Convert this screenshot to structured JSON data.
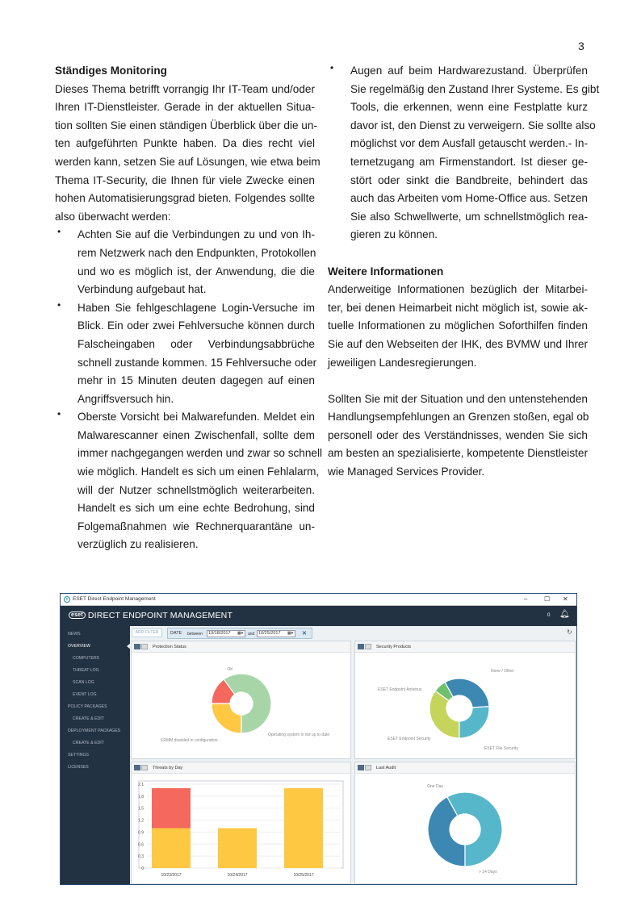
{
  "page_number": "3",
  "left_column": [
    {
      "type": "heading",
      "lines": [
        "Ständiges Monitoring"
      ]
    },
    {
      "type": "para",
      "lines": [
        "Dieses Thema betrifft vorrangig Ihr IT-Team und/oder",
        "Ihren IT-Dienstleister. Gerade in der aktuellen Situa-",
        "tion sollten Sie einen ständigen Überblick über die un-",
        "ten aufgeführten Punkte haben. Da dies recht viel",
        "werden kann, setzen Sie auf Lösungen, wie etwa beim",
        "Thema IT-Security, die Ihnen für viele Zwecke einen",
        "hohen Automatisierungsgrad bieten. Folgendes sollte",
        "also überwacht werden:"
      ]
    },
    {
      "type": "bullet",
      "lines": [
        "Achten Sie auf die Verbindungen zu und von Ih-",
        "rem Netzwerk nach den Endpunkten, Protokollen",
        "und wo es möglich ist, der Anwendung, die die",
        "Verbindung aufgebaut hat."
      ]
    },
    {
      "type": "bullet",
      "lines": [
        "Haben Sie fehlgeschlagene Login-Versuche im",
        "Blick. Ein oder zwei Fehlversuche können durch",
        "Falscheingaben oder Verbindungsabbrüche",
        "schnell zustande kommen. 15 Fehlversuche oder",
        "mehr in 15 Minuten deuten dagegen auf einen",
        "Angriffsversuch hin."
      ]
    },
    {
      "type": "bullet",
      "lines": [
        "Oberste Vorsicht bei Malwarefunden. Meldet ein",
        "Malwarescanner einen Zwischenfall, sollte dem",
        "immer nachgegangen werden und zwar so schnell",
        "wie möglich. Handelt es sich um einen Fehlalarm,",
        "will der Nutzer schnellstmöglich weiterarbeiten.",
        "Handelt es sich um eine echte Bedrohung, sind",
        "Folgemaßnahmen wie Rechnerquarantäne un-",
        "verzüglich zu realisieren."
      ]
    }
  ],
  "right_column": [
    {
      "type": "bullet",
      "lines": [
        "Augen auf beim Hardwarezustand. Überprüfen",
        "Sie regelmäßig den Zustand Ihrer Systeme. Es gibt",
        "Tools, die erkennen, wenn eine Festplatte kurz",
        "davor ist, den Dienst zu verweigern. Sie sollte also",
        "möglichst vor dem Ausfall getauscht werden.- In-",
        "ternetzugang am Firmenstandort. Ist dieser ge-",
        "stört oder sinkt die Bandbreite, behindert das",
        "auch das Arbeiten vom Home-Office aus. Setzen",
        "Sie also Schwellwerte, um schnellstmöglich rea-",
        "gieren zu können."
      ]
    },
    {
      "type": "gap"
    },
    {
      "type": "heading",
      "lines": [
        "Weitere Informationen"
      ]
    },
    {
      "type": "para",
      "lines": [
        "Anderweitige Informationen bezüglich der Mitarbei-",
        "ter, bei denen Heimarbeit nicht möglich ist, sowie ak-",
        "tuelle Informationen zu möglichen Soforthilfen finden",
        "Sie auf den Webseiten der IHK, des BVMW und Ihrer",
        "jeweiligen Landesregierungen."
      ]
    },
    {
      "type": "gap"
    },
    {
      "type": "para",
      "lines": [
        "Sollten Sie mit der Situation und den untenstehenden",
        "Handlungsempfehlungen an Grenzen stoßen, egal ob",
        "personell oder des Verständnisses, wenden Sie sich",
        "am besten an spezialisierte, kompetente Dienstleister",
        "wie Managed Services Provider."
      ]
    }
  ],
  "app": {
    "window_title": "ESET Direct Endpoint Management",
    "logo_text": "eset",
    "brand_title": "DIRECT ENDPOINT MANAGEMENT",
    "notification_count": "0",
    "sidebar": [
      "NEWS",
      "OVERVIEW",
      "COMPUTERS",
      "THREAT LOG",
      "SCAN LOG",
      "EVENT LOG",
      "POLICY PACKAGES",
      "CREATE & EDIT",
      "DEPLOYMENT PACKAGES",
      "CREATE & EDIT",
      "SETTINGS",
      "LICENSES"
    ],
    "active_item": "OVERVIEW",
    "filter": {
      "add_filter": "ADD FILTER",
      "field": "DATE",
      "between": "between",
      "from": "10/18/2017",
      "and": "and",
      "to": "10/25/2017"
    },
    "colors": {
      "header": "#233243",
      "green": "#a8d5a8",
      "yellow": "#fec843",
      "red": "#f4685e",
      "teal": "#55b7c9",
      "blue": "#3d87b3",
      "lime": "#c5d45a",
      "lightgreen": "#6ec06e"
    }
  },
  "chart_data": [
    {
      "type": "pie",
      "title": "Protection Status",
      "donut": true,
      "slices": [
        {
          "label": "Operating system is not up to date",
          "value": 25,
          "color": "#fec843"
        },
        {
          "label": "ERMM disabled in configuration.",
          "value": 15,
          "color": "#f4685e"
        },
        {
          "label": "OK",
          "value": 60,
          "color": "#a8d5a8"
        }
      ]
    },
    {
      "type": "pie",
      "title": "Security Products",
      "donut": true,
      "slices": [
        {
          "label": "ESET File Security",
          "value": 35,
          "color": "#c5d45a"
        },
        {
          "label": "ESET Endpoint Security",
          "value": 7,
          "color": "#6ec06e"
        },
        {
          "label": "ESET Endpoint Antivirus",
          "value": 32,
          "color": "#3d87b3"
        },
        {
          "label": "None / Other",
          "value": 26,
          "color": "#55b7c9"
        }
      ]
    },
    {
      "type": "bar",
      "title": "Threats by Day",
      "stacked": true,
      "categories": [
        "10/23/2017",
        "10/24/2017",
        "10/25/2017"
      ],
      "series": [
        {
          "values": [
            1,
            1,
            2
          ],
          "color": "#fec843"
        },
        {
          "values": [
            1,
            0,
            0
          ],
          "color": "#f4685e"
        }
      ],
      "yticks": [
        "0",
        "0.3",
        "0.6",
        "0.9",
        "1.2",
        "1.5",
        "1.8",
        "2.1"
      ],
      "ylim": [
        0,
        2.1
      ],
      "grid": true
    },
    {
      "type": "pie",
      "title": "Last Audit",
      "donut": true,
      "slices": [
        {
          "label": "> 14 Days",
          "value": 42,
          "color": "#3d87b3"
        },
        {
          "label": "One Day",
          "value": 58,
          "color": "#55b7c9"
        }
      ]
    }
  ]
}
